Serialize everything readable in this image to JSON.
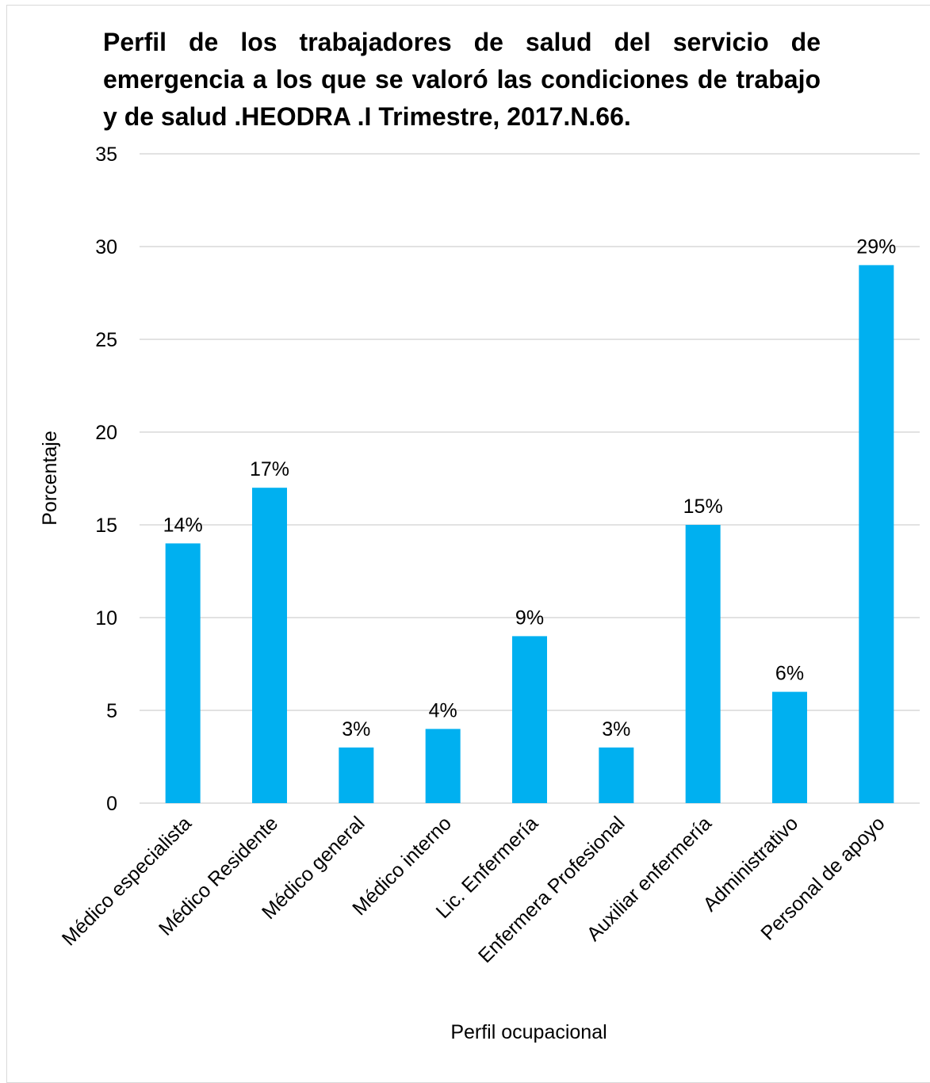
{
  "chart_data": {
    "type": "bar",
    "title": "Perfil de los trabajadores de salud del servicio de emergencia a los que  se valoró las condiciones de trabajo y de salud .HEODRA .I Trimestre, 2017.N.66.",
    "xlabel": "Perfil ocupacional",
    "ylabel": "Porcentaje",
    "ylim": [
      0,
      35
    ],
    "yticks": [
      "0",
      "5",
      "10",
      "15",
      "20",
      "25",
      "30",
      "35"
    ],
    "grid": true,
    "bar_color": "#00B0F0",
    "categories": [
      "Médico especialista",
      "Médico Residente",
      "Médico general",
      "Médico interno",
      "Lic. Enfermería",
      "Enfermera Profesional",
      "Auxiliar enfermería",
      "Administrativo",
      "Personal de apoyo"
    ],
    "values": [
      14,
      17,
      3,
      4,
      9,
      3,
      15,
      6,
      29
    ],
    "data_labels": [
      "14%",
      "17%",
      "3%",
      "4%",
      "9%",
      "3%",
      "15%",
      "6%",
      "29%"
    ]
  }
}
